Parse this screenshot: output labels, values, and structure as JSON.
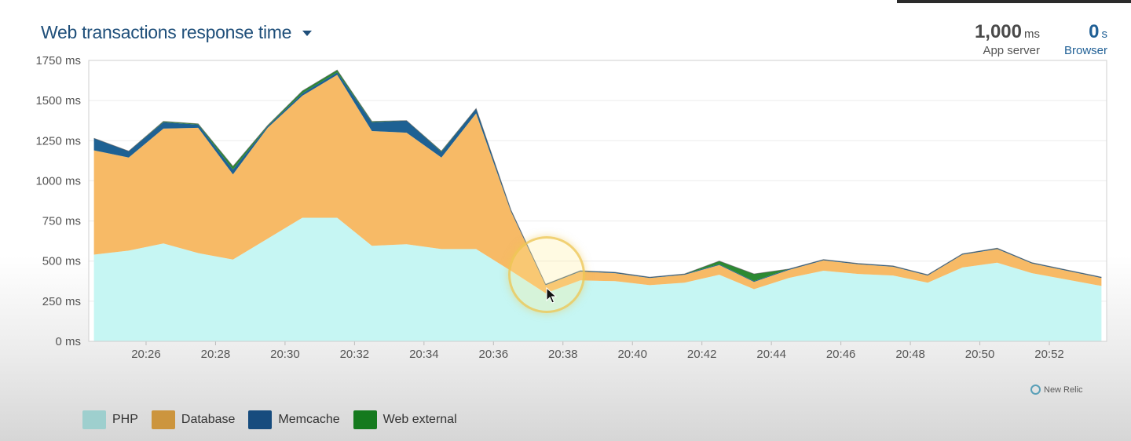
{
  "header": {
    "title": "Web transactions response time",
    "app_server_value": "1,000",
    "app_server_unit": "ms",
    "app_server_label": "App server",
    "browser_value": "0",
    "browser_unit": "s",
    "browser_label": "Browser"
  },
  "watermark": "New Relic",
  "colors": {
    "php": "#c6f6f3",
    "database": "#f7ba66",
    "memcache": "#1e6193",
    "web_external": "#2c8a32",
    "legend_php": "#9ecfce",
    "legend_database": "#cc953e",
    "legend_memcache": "#174c7e",
    "legend_web_external": "#157a1e"
  },
  "chart_data": {
    "type": "area",
    "stacked": true,
    "title": "Web transactions response time",
    "xlabel": "",
    "ylabel": "",
    "ylim": [
      0,
      1750
    ],
    "yticks": [
      "0 ms",
      "250 ms",
      "500 ms",
      "750 ms",
      "1000 ms",
      "1250 ms",
      "1500 ms",
      "1750 ms"
    ],
    "xticks": [
      "20:26",
      "20:28",
      "20:30",
      "20:32",
      "20:34",
      "20:36",
      "20:38",
      "20:40",
      "20:42",
      "20:44",
      "20:46",
      "20:48",
      "20:50",
      "20:52"
    ],
    "legend_position": "bottom-left",
    "grid": true,
    "x": [
      "20:24.5",
      "20:25.5",
      "20:26.5",
      "20:27.5",
      "20:28.5",
      "20:29.5",
      "20:30.5",
      "20:31.5",
      "20:32.5",
      "20:33.5",
      "20:34.5",
      "20:35.5",
      "20:36.5",
      "20:37.5",
      "20:38.5",
      "20:39.5",
      "20:40.5",
      "20:41.5",
      "20:42.5",
      "20:43.5",
      "20:44.5",
      "20:45.5",
      "20:46.5",
      "20:47.5",
      "20:48.5",
      "20:49.5",
      "20:50.5",
      "20:51.5",
      "20:52.5",
      "20:53.5"
    ],
    "x_minutes": [
      24.5,
      25.5,
      26.5,
      27.5,
      28.5,
      29.5,
      30.5,
      31.5,
      32.5,
      33.5,
      34.5,
      35.5,
      36.5,
      37.5,
      38.5,
      39.5,
      40.5,
      41.5,
      42.5,
      43.5,
      44.5,
      45.5,
      46.5,
      47.5,
      48.5,
      49.5,
      50.5,
      51.5,
      52.5,
      53.5
    ],
    "series": [
      {
        "name": "PHP",
        "values": [
          540,
          565,
          610,
          550,
          510,
          640,
          770,
          770,
          595,
          605,
          575,
          575,
          440,
          300,
          380,
          375,
          350,
          365,
          415,
          325,
          395,
          440,
          420,
          410,
          365,
          460,
          490,
          425,
          385,
          345
        ]
      },
      {
        "name": "Database",
        "values": [
          650,
          580,
          715,
          780,
          530,
          690,
          760,
          890,
          715,
          695,
          570,
          845,
          370,
          50,
          55,
          50,
          45,
          50,
          60,
          45,
          50,
          65,
          60,
          55,
          45,
          80,
          85,
          60,
          55,
          50
        ]
      },
      {
        "name": "Memcache",
        "values": [
          75,
          40,
          40,
          20,
          30,
          10,
          15,
          15,
          55,
          75,
          35,
          30,
          10,
          5,
          5,
          5,
          5,
          5,
          5,
          5,
          5,
          5,
          5,
          5,
          5,
          5,
          5,
          5,
          5,
          5
        ]
      },
      {
        "name": "Web external",
        "values": [
          0,
          0,
          5,
          5,
          20,
          5,
          15,
          15,
          5,
          0,
          5,
          0,
          0,
          0,
          0,
          0,
          0,
          0,
          20,
          45,
          0,
          0,
          0,
          0,
          0,
          0,
          0,
          0,
          0,
          0
        ]
      }
    ]
  },
  "legend": [
    {
      "label": "PHP",
      "color_key": "legend_php"
    },
    {
      "label": "Database",
      "color_key": "legend_database"
    },
    {
      "label": "Memcache",
      "color_key": "legend_memcache"
    },
    {
      "label": "Web external",
      "color_key": "legend_web_external"
    }
  ]
}
